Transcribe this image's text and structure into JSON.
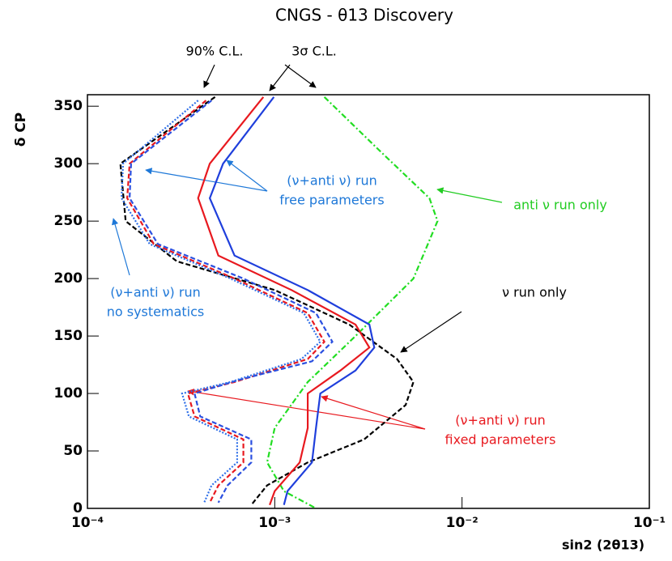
{
  "chart_data": {
    "type": "line",
    "title": "CNGS - θ13 Discovery",
    "x_label": "sin2 (2θ13)",
    "y_label": "δ CP",
    "log_x": true,
    "xlim": [
      0.0001,
      0.1
    ],
    "ylim": [
      0,
      360
    ],
    "xticks": [
      {
        "value": 0.0001,
        "label": "10⁻⁴"
      },
      {
        "value": 0.001,
        "label": "10⁻³"
      },
      {
        "value": 0.01,
        "label": "10⁻²"
      },
      {
        "value": 0.1,
        "label": "10⁻¹"
      }
    ],
    "yticks": [
      0,
      50,
      100,
      150,
      200,
      250,
      300,
      350
    ],
    "series": [
      {
        "color": "#000000",
        "style": "dashed",
        "x": [
          0.00048,
          0.00015,
          0.00016,
          0.0003,
          0.001,
          0.0025,
          0.0045,
          0.0055,
          0.005,
          0.003,
          0.0015,
          0.00091,
          0.00075
        ],
        "values": [
          358,
          300,
          250,
          215,
          190,
          160,
          130,
          110,
          90,
          60,
          40,
          20,
          3
        ]
      },
      {
        "color": "#22dd22",
        "style": "dashdot",
        "x": [
          0.00184,
          0.0037,
          0.0067,
          0.0074,
          0.0055,
          0.0027,
          0.0015,
          0.001,
          0.00091,
          0.00112,
          0.00166
        ],
        "values": [
          358,
          310,
          270,
          250,
          200,
          150,
          110,
          70,
          40,
          15,
          0
        ]
      },
      {
        "color": "#e8191f",
        "style": "solid",
        "x": [
          0.00087,
          0.00045,
          0.00039,
          0.0005,
          0.00123,
          0.0027,
          0.0032,
          0.00224,
          0.0015,
          0.0015,
          0.00136,
          0.001,
          0.00094
        ],
        "values": [
          358,
          300,
          270,
          220,
          190,
          160,
          140,
          120,
          100,
          70,
          40,
          15,
          3
        ]
      },
      {
        "color": "#1f3fdc",
        "style": "solid",
        "x": [
          0.00099,
          0.00053,
          0.00045,
          0.00061,
          0.0015,
          0.0032,
          0.0034,
          0.0027,
          0.00175,
          0.00166,
          0.00158,
          0.00117,
          0.00112
        ],
        "values": [
          358,
          300,
          270,
          220,
          190,
          160,
          140,
          120,
          100,
          70,
          40,
          15,
          3
        ]
      },
      {
        "color": "#e8191f",
        "style": "dashed",
        "x": [
          0.00043,
          0.000168,
          0.000163,
          0.000226,
          0.00061,
          0.0015,
          0.00184,
          0.0015,
          0.00061,
          0.000344,
          0.000373,
          0.00068,
          0.00068,
          0.0005,
          0.00045
        ],
        "values": [
          355,
          300,
          270,
          230,
          200,
          170,
          145,
          130,
          110,
          100,
          80,
          60,
          40,
          20,
          5
        ]
      },
      {
        "color": "#2a4fe0",
        "style": "dashed",
        "x": [
          0.00046,
          0.000171,
          0.000168,
          0.000238,
          0.00068,
          0.00166,
          0.00203,
          0.00158,
          0.00065,
          0.000373,
          0.0004,
          0.00075,
          0.00075,
          0.00056,
          0.0005
        ],
        "values": [
          355,
          300,
          270,
          230,
          200,
          170,
          145,
          128,
          112,
          100,
          80,
          60,
          40,
          20,
          5
        ]
      },
      {
        "color": "#3070e8",
        "style": "dotted",
        "x": [
          0.00039,
          0.000155,
          0.000152,
          0.000215,
          0.00058,
          0.00143,
          0.00175,
          0.00139,
          0.00058,
          0.00032,
          0.000348,
          0.00063,
          0.00063,
          0.00046,
          0.00042
        ],
        "values": [
          355,
          300,
          270,
          230,
          200,
          170,
          145,
          130,
          110,
          100,
          80,
          60,
          40,
          20,
          5
        ]
      }
    ],
    "annotations": [
      {
        "lines": [
          "90% C.L."
        ],
        "color": "#000000"
      },
      {
        "lines": [
          "3σ C.L."
        ],
        "color": "#000000"
      },
      {
        "lines": [
          "(ν+anti ν) run",
          "free parameters"
        ],
        "color": "#1e78d8"
      },
      {
        "lines": [
          "anti ν run only"
        ],
        "color": "#22cc22"
      },
      {
        "lines": [
          "(ν+anti ν) run",
          "no systematics"
        ],
        "color": "#1e78d8"
      },
      {
        "lines": [
          "ν run only"
        ],
        "color": "#000000"
      },
      {
        "lines": [
          "(ν+anti ν) run",
          "fixed parameters"
        ],
        "color": "#e8191f"
      }
    ]
  }
}
